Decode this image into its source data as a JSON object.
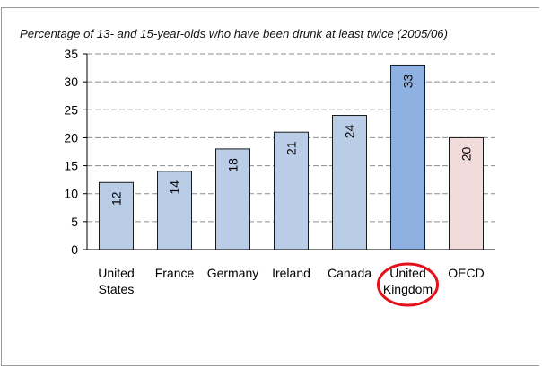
{
  "chart_data": {
    "type": "bar",
    "title": "Percentage of 13- and 15-year-olds who have been drunk at least twice (2005/06)",
    "categories": [
      [
        "United",
        "States"
      ],
      [
        "France"
      ],
      [
        "Germany"
      ],
      [
        "Ireland"
      ],
      [
        "Canada"
      ],
      [
        "United",
        "Kingdom"
      ],
      [
        "OECD"
      ]
    ],
    "values": [
      12,
      14,
      18,
      21,
      24,
      33,
      20
    ],
    "value_labels": [
      "12",
      "14",
      "18",
      "21",
      "24",
      "33",
      "20"
    ],
    "ylim": [
      0,
      35
    ],
    "yticks": [
      0,
      5,
      10,
      15,
      20,
      25,
      30,
      35
    ],
    "grid": true,
    "bar_colors": [
      "#b9cde6",
      "#b9cde6",
      "#b9cde6",
      "#b9cde6",
      "#b9cde6",
      "#8fb1e1",
      "#f2dcdb"
    ],
    "highlight_category_index": 5,
    "highlight_color": "#e4111a"
  }
}
